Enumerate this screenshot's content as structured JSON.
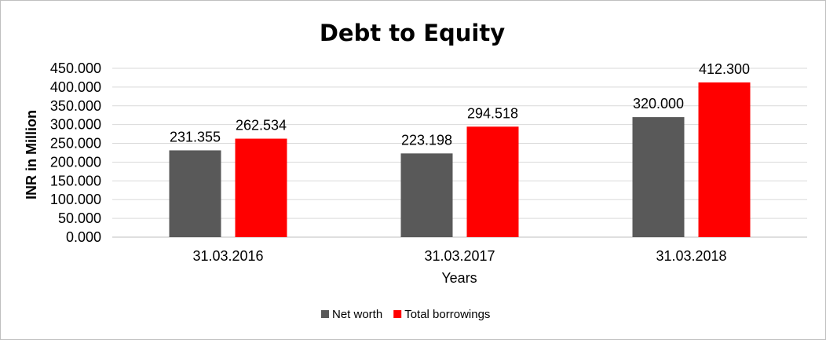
{
  "chart_data": {
    "type": "bar",
    "title": "Debt to Equity",
    "xlabel": "Years",
    "ylabel": "INR in Million",
    "categories": [
      "31.03.2016",
      "31.03.2017",
      "31.03.2018"
    ],
    "series": [
      {
        "name": "Net worth",
        "values": [
          231.355,
          223.198,
          320.0
        ],
        "labels": [
          "231.355",
          "223.198",
          "320.000"
        ],
        "color": "#595959"
      },
      {
        "name": "Total borrowings",
        "values": [
          262.534,
          294.518,
          412.3
        ],
        "labels": [
          "262.534",
          "294.518",
          "412.300"
        ],
        "color": "#ff0000"
      }
    ],
    "ylim": [
      0,
      450
    ],
    "yticks": [
      0,
      50,
      100,
      150,
      200,
      250,
      300,
      350,
      400,
      450
    ],
    "ytick_labels": [
      "0.000",
      "50.000",
      "100.000",
      "150.000",
      "200.000",
      "250.000",
      "300.000",
      "350.000",
      "400.000",
      "450.000"
    ],
    "grid": true,
    "legend_position": "bottom"
  }
}
